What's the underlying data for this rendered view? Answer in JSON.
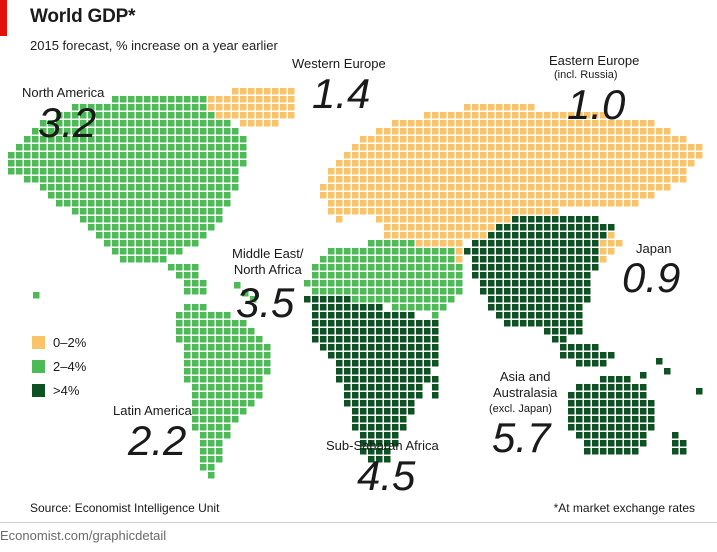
{
  "header": {
    "title": "World GDP*",
    "subtitle": "2015 forecast, % increase on a year earlier",
    "accent_color": "#e3120b"
  },
  "colors": {
    "low": "#f9c36a",
    "mid": "#4cba55",
    "high": "#0e5224"
  },
  "legend": [
    {
      "label": "0–2%",
      "color": "#f9c36a"
    },
    {
      "label": "2–4%",
      "color": "#4cba55"
    },
    {
      "label": ">4%",
      "color": "#0e5224"
    }
  ],
  "regions": [
    {
      "name": "North America",
      "note": "",
      "value": "3.2",
      "category": "2–4%"
    },
    {
      "name": "Western Europe",
      "note": "",
      "value": "1.4",
      "category": "0–2%"
    },
    {
      "name": "Eastern Europe",
      "note": "(incl. Russia)",
      "value": "1.0",
      "category": "0–2%"
    },
    {
      "name": "Middle East/\nNorth Africa",
      "note": "",
      "value": "3.5",
      "category": "2–4%"
    },
    {
      "name": "Japan",
      "note": "",
      "value": "0.9",
      "category": "0–2%"
    },
    {
      "name": "Latin America",
      "note": "",
      "value": "2.2",
      "category": "2–4%"
    },
    {
      "name": "Sub-Saharan Africa",
      "note": "",
      "value": "4.5",
      "category": ">4%"
    },
    {
      "name": "Asia and\nAustralasia",
      "note": "(excl. Japan)",
      "value": "5.7",
      "category": ">4%"
    }
  ],
  "footer": {
    "source": "Source: Economist Intelligence Unit",
    "footnote": "*At market exchange rates",
    "website": "Economist.com/graphicdetail"
  }
}
